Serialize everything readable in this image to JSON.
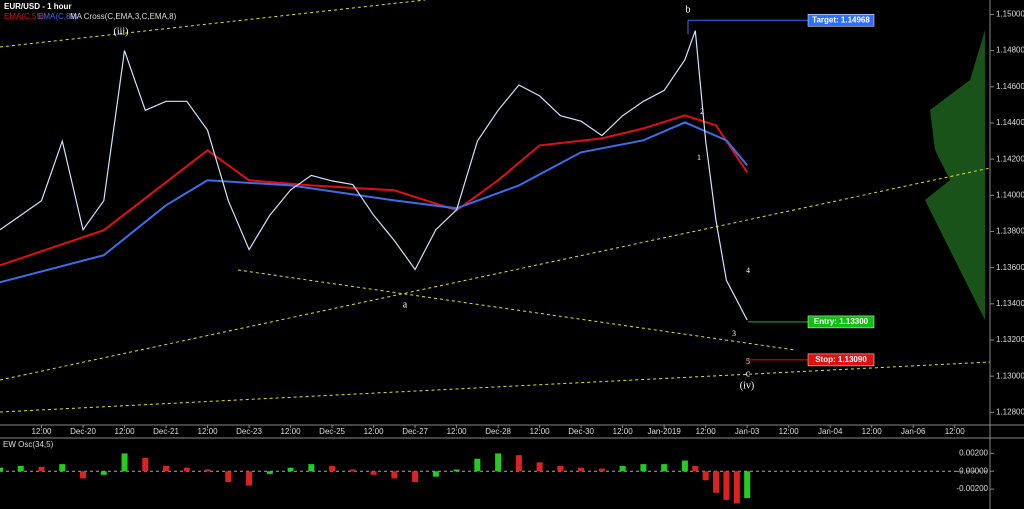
{
  "chart_data": {
    "type": "line",
    "title": "EUR/USD - 1 hour",
    "x": [
      0,
      0.5,
      1,
      1.5,
      2,
      2.5,
      3,
      3.5,
      4,
      4.5,
      5,
      5.5,
      6,
      6.5,
      7,
      7.5,
      8,
      8.5,
      9,
      9.5,
      10,
      10.5,
      11,
      11.5,
      12,
      12.5,
      13,
      13.5,
      14,
      14.5,
      15,
      15.5,
      16,
      16.5,
      16.75,
      17,
      17.25,
      17.5,
      17.75,
      18
    ],
    "series": [
      {
        "name": "MA Cross(C,EMA,3,C,EMA,8)",
        "color": "#cfe3ff",
        "values": [
          1.1381,
          1.1389,
          1.1397,
          1.143,
          1.1381,
          1.1397,
          1.148,
          1.1447,
          1.1452,
          1.1452,
          1.1436,
          1.1397,
          1.137,
          1.1389,
          1.1403,
          1.1411,
          1.1408,
          1.1406,
          1.1389,
          1.1375,
          1.1359,
          1.1381,
          1.1392,
          1.143,
          1.1447,
          1.1461,
          1.1455,
          1.1444,
          1.1441,
          1.1433,
          1.1444,
          1.1452,
          1.1458,
          1.1475,
          1.1491,
          1.143,
          1.1386,
          1.1353,
          1.1342,
          1.1331
        ]
      }
    ],
    "ema": [
      {
        "name": "EMA(C,55)",
        "color": "#e01010",
        "x": [
          0,
          2.5,
          5,
          6,
          7.5,
          9.5,
          11,
          12,
          13,
          14.5,
          15.5,
          16.5,
          17.25,
          18
        ],
        "values": [
          1.13613,
          1.13807,
          1.14249,
          1.14083,
          1.14055,
          1.14028,
          1.13917,
          1.14083,
          1.14276,
          1.14315,
          1.1437,
          1.14442,
          1.14387,
          1.14127
        ]
      },
      {
        "name": "EMA(C,89)",
        "color": "#3a6ee8",
        "x": [
          0,
          2.5,
          4,
          5,
          7,
          9.5,
          11,
          12.5,
          14,
          15.5,
          16.5,
          17.5,
          18
        ],
        "values": [
          1.13519,
          1.13669,
          1.13945,
          1.14083,
          1.14055,
          1.13972,
          1.13928,
          1.14055,
          1.14238,
          1.14304,
          1.14403,
          1.14304,
          1.14166
        ]
      }
    ],
    "xlim": [
      0,
      23.85
    ],
    "xticks": [
      {
        "value": 1,
        "label": "12:00"
      },
      {
        "value": 2,
        "label": "Dec-20"
      },
      {
        "value": 3,
        "label": "12:00"
      },
      {
        "value": 4,
        "label": "Dec-21"
      },
      {
        "value": 5,
        "label": "12:00"
      },
      {
        "value": 6,
        "label": "Dec-23"
      },
      {
        "value": 7,
        "label": "12:00"
      },
      {
        "value": 8,
        "label": "Dec-25"
      },
      {
        "value": 9,
        "label": "12:00"
      },
      {
        "value": 10,
        "label": "Dec-27"
      },
      {
        "value": 11,
        "label": "12:00"
      },
      {
        "value": 12,
        "label": "Dec-28"
      },
      {
        "value": 13,
        "label": "12:00"
      },
      {
        "value": 14,
        "label": "Dec-30"
      },
      {
        "value": 15,
        "label": "12:00"
      },
      {
        "value": 16,
        "label": "Jan-2019"
      },
      {
        "value": 17,
        "label": "12:00"
      },
      {
        "value": 18,
        "label": "Jan-03"
      },
      {
        "value": 19,
        "label": "12:00"
      },
      {
        "value": 20,
        "label": "Jan-04"
      },
      {
        "value": 21,
        "label": "12:00"
      },
      {
        "value": 22,
        "label": "Jan-06"
      },
      {
        "value": 23,
        "label": "12:00"
      }
    ],
    "ylim": [
      1.1273,
      1.1508
    ],
    "yticks": [
      {
        "value": 1.128,
        "label": "1.12800"
      },
      {
        "value": 1.13,
        "label": "1.13000"
      },
      {
        "value": 1.132,
        "label": "1.13200"
      },
      {
        "value": 1.134,
        "label": "1.13400"
      },
      {
        "value": 1.136,
        "label": "1.13600"
      },
      {
        "value": 1.138,
        "label": "1.13800"
      },
      {
        "value": 1.14,
        "label": "1.14000"
      },
      {
        "value": 1.142,
        "label": "1.14200"
      },
      {
        "value": 1.144,
        "label": "1.14400"
      },
      {
        "value": 1.146,
        "label": "1.14600"
      },
      {
        "value": 1.148,
        "label": "1.14800"
      },
      {
        "value": 1.15,
        "label": "1.15000"
      }
    ],
    "levels": [
      {
        "value": 1.14968,
        "label": "Target: 1.14968",
        "color": "#2f6fff"
      },
      {
        "value": 1.133,
        "label": "Entry: 1.13300",
        "color": "#10c010"
      },
      {
        "value": 1.1309,
        "label": "Stop: 1.13090",
        "color": "#e01010"
      }
    ],
    "waves": [
      "(iii)",
      "b",
      "a",
      "c",
      "(iv)",
      "1",
      "2",
      "3",
      "4",
      "5"
    ],
    "oscillator": {
      "name": "EW Osc(34,5)",
      "up_color": "#22cc22",
      "down_color": "#dd2222",
      "values": [
        0.0004,
        0.0006,
        0.0005,
        0.0008,
        -0.0008,
        -0.0004,
        0.002,
        0.0015,
        0.0006,
        0.0004,
        0.0002,
        -0.0012,
        -0.0016,
        -0.0003,
        0.0004,
        0.0008,
        0.0006,
        0.0002,
        -0.0004,
        -0.0008,
        -0.0012,
        -0.0006,
        0.0002,
        0.0014,
        0.002,
        0.0018,
        0.001,
        0.0006,
        0.0004,
        0.0003,
        0.0006,
        0.0008,
        0.0008,
        0.0012,
        0.0006,
        -0.001,
        -0.0024,
        -0.0032,
        -0.0036,
        -0.003
      ],
      "ylim": [
        -0.004,
        0.0035
      ],
      "yticks": [
        {
          "value": 0.002,
          "label": "0.00200"
        },
        {
          "value": 0,
          "label": "-0.00000"
        },
        {
          "value": -0.002,
          "label": "-0.00200"
        }
      ]
    }
  }
}
